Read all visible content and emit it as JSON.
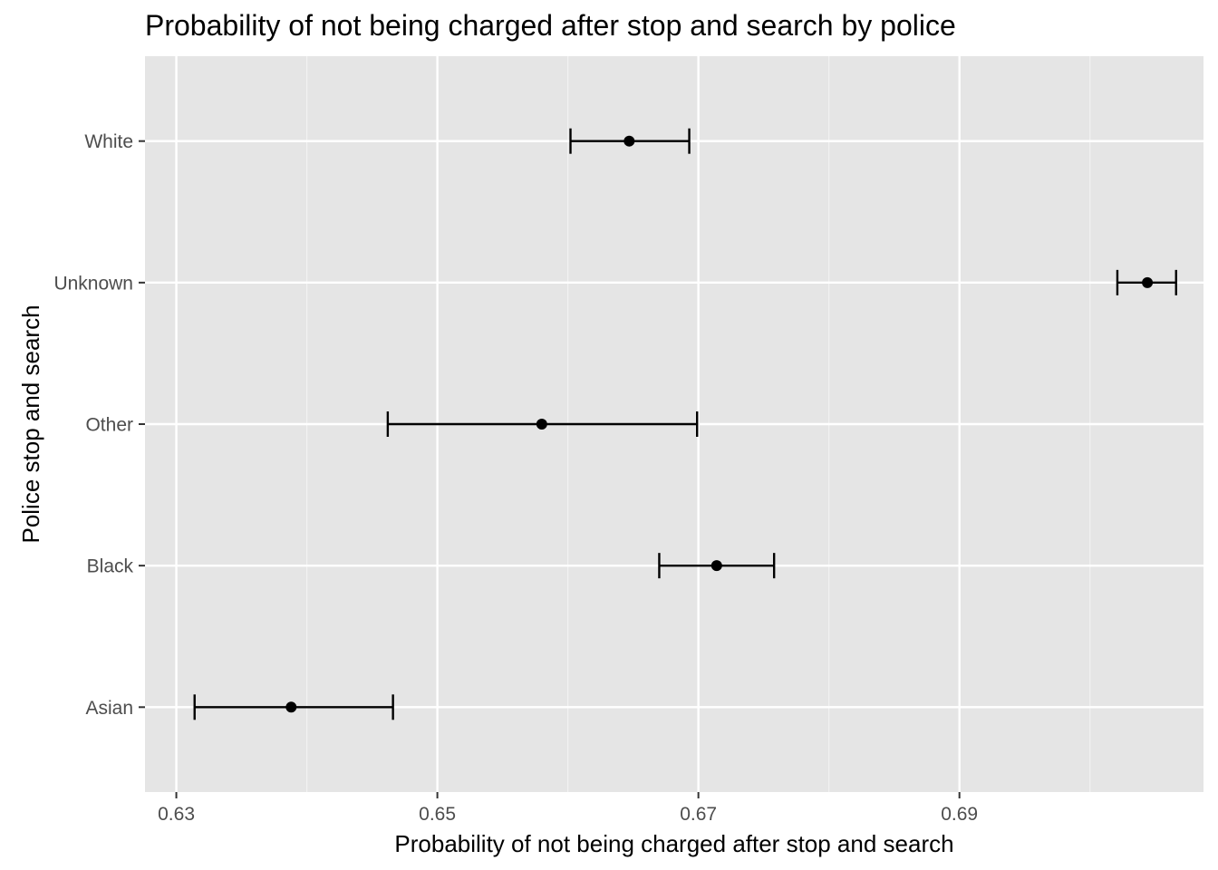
{
  "chart_data": {
    "type": "scatter",
    "subtype": "point-with-errorbars",
    "title": "Probability of not being charged after stop and search by police",
    "xlabel": "Probability of not being charged after stop and search",
    "ylabel": "Police stop and search",
    "xlim": [
      0.6276,
      0.7087
    ],
    "x_ticks": [
      {
        "value": 0.63,
        "label": "0.63"
      },
      {
        "value": 0.65,
        "label": "0.65"
      },
      {
        "value": 0.67,
        "label": "0.67"
      },
      {
        "value": 0.69,
        "label": "0.69"
      }
    ],
    "x_minor_ticks": [
      0.64,
      0.66,
      0.68,
      0.7
    ],
    "categories": [
      "Asian",
      "Black",
      "Other",
      "Unknown",
      "White"
    ],
    "points": [
      {
        "category": "Asian",
        "estimate": 0.6388,
        "lower": 0.6314,
        "upper": 0.6466
      },
      {
        "category": "Black",
        "estimate": 0.6714,
        "lower": 0.667,
        "upper": 0.6758
      },
      {
        "category": "Other",
        "estimate": 0.658,
        "lower": 0.6462,
        "upper": 0.6699
      },
      {
        "category": "Unknown",
        "estimate": 0.7044,
        "lower": 0.7021,
        "upper": 0.7066
      },
      {
        "category": "White",
        "estimate": 0.6647,
        "lower": 0.6602,
        "upper": 0.6693
      }
    ],
    "grid": true,
    "legend": "none",
    "colors": {
      "panel_background": "#e5e5e5",
      "grid_major": "#ffffff",
      "grid_minor": "#f2f2f2",
      "marks": "#000000",
      "tick_text": "#4d4d4d",
      "axis_tick": "#333333"
    }
  }
}
